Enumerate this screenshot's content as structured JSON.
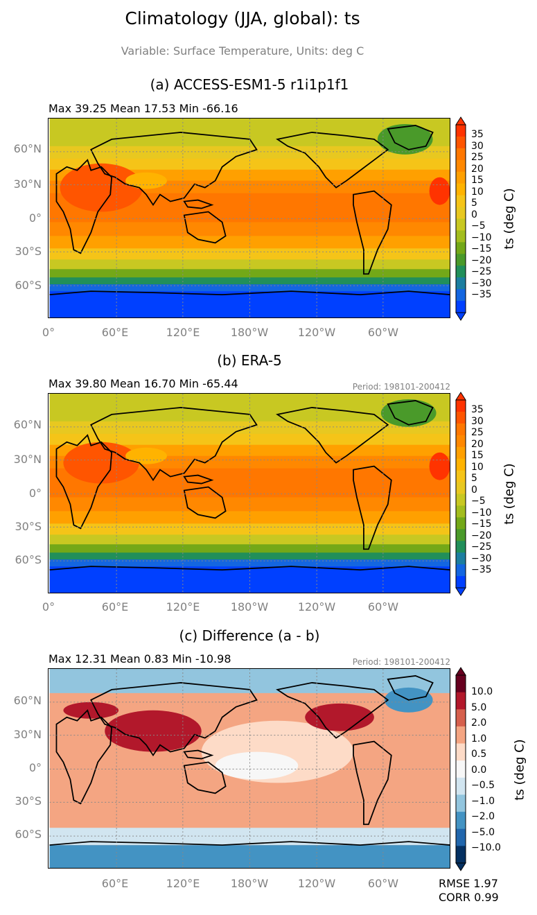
{
  "title": "Climatology (JJA, global): ts",
  "subtitle": "Variable: Surface Temperature, Units: deg C",
  "lat_labels": [
    "60°N",
    "30°N",
    "0°",
    "30°S",
    "60°S"
  ],
  "lon_labels_full": [
    "0°",
    "60°E",
    "120°E",
    "180°W",
    "120°W",
    "60°W"
  ],
  "lon_labels_diff": [
    "60°E",
    "120°E",
    "180°W",
    "120°W",
    "60°W"
  ],
  "panels": [
    {
      "id": "a",
      "title": "(a) ACCESS-ESM1-5 r1i1p1f1",
      "stats": "Max 39.25 Mean 17.53 Min -66.16",
      "period": "",
      "colorbar_label": "ts (deg C)",
      "colorbar_ticks": [
        "35",
        "30",
        "25",
        "20",
        "15",
        "10",
        "5",
        "0",
        "−5",
        "−10",
        "−15",
        "−20",
        "−25",
        "−30",
        "−35"
      ]
    },
    {
      "id": "b",
      "title": "(b) ERA-5",
      "stats": "Max 39.80 Mean 16.70 Min -65.44",
      "period": "Period: 198101-200412",
      "colorbar_label": "ts (deg C)",
      "colorbar_ticks": [
        "35",
        "30",
        "25",
        "20",
        "15",
        "10",
        "5",
        "0",
        "−5",
        "−10",
        "−15",
        "−20",
        "−25",
        "−30",
        "−35"
      ]
    },
    {
      "id": "c",
      "title": "(c) Difference (a - b)",
      "stats": "Max 12.31 Mean 0.83 Min -10.98",
      "period": "Period: 198101-200412",
      "colorbar_label": "ts (deg C)",
      "colorbar_ticks": [
        "10.0",
        "5.0",
        "2.0",
        "1.0",
        "0.5",
        "0.0",
        "−0.5",
        "−1.0",
        "−2.0",
        "−5.0",
        "−10.0"
      ]
    }
  ],
  "rmse": "RMSE 1.97",
  "corr": "CORR 0.99",
  "colors": {
    "temp_scale": [
      "#ff3300",
      "#ff5500",
      "#ff7700",
      "#ff8800",
      "#ffa000",
      "#ffb300",
      "#f5c418",
      "#e8c820",
      "#c8c822",
      "#a3bd1e",
      "#73a818",
      "#4a9a2a",
      "#218f5a",
      "#1c7ea0",
      "#1466e0",
      "#0040ff"
    ],
    "diff_scale": [
      "#67001f",
      "#b2182b",
      "#d6604d",
      "#f4a582",
      "#fddbc7",
      "#f7f7f7",
      "#d1e5f0",
      "#92c5de",
      "#4393c3",
      "#2166ac",
      "#053061"
    ]
  }
}
